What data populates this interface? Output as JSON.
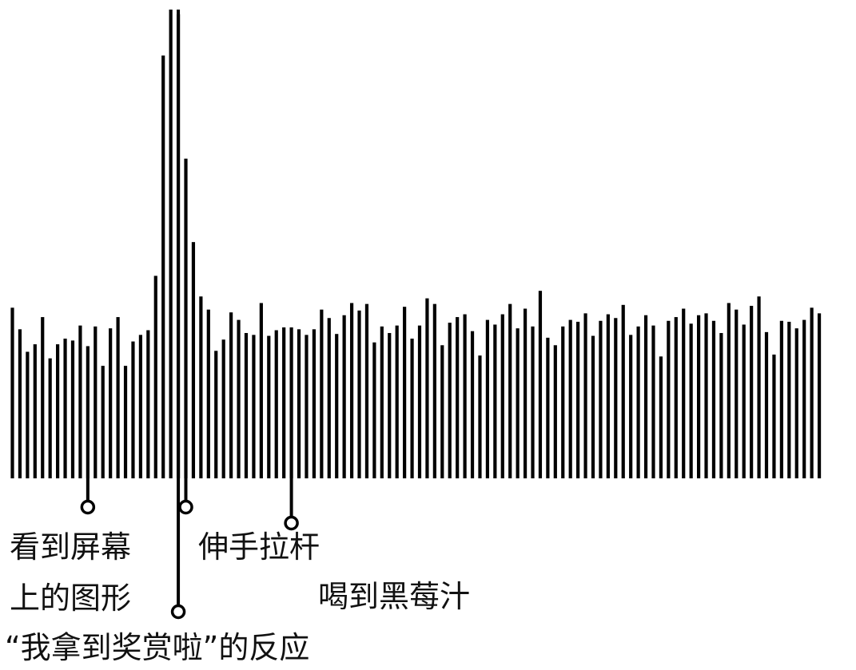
{
  "chart_data": {
    "type": "bar",
    "title": "",
    "xlabel": "",
    "ylabel": "",
    "grid": false,
    "bar_color": "#000000",
    "values": [
      182,
      159,
      135,
      143,
      172,
      128,
      143,
      149,
      147,
      163,
      141,
      162,
      120,
      160,
      172,
      120,
      146,
      153,
      158,
      216,
      451,
      500,
      495,
      341,
      252,
      194,
      180,
      136,
      148,
      177,
      169,
      155,
      153,
      187,
      152,
      158,
      161,
      161,
      159,
      153,
      159,
      180,
      171,
      154,
      174,
      187,
      179,
      186,
      145,
      162,
      155,
      163,
      183,
      149,
      163,
      192,
      186,
      142,
      166,
      172,
      175,
      157,
      131,
      169,
      164,
      175,
      186,
      160,
      181,
      162,
      200,
      150,
      142,
      162,
      169,
      167,
      176,
      152,
      168,
      175,
      171,
      185,
      153,
      162,
      174,
      163,
      130,
      168,
      172,
      181,
      165,
      174,
      176,
      168,
      155,
      187,
      180,
      164,
      184,
      194,
      156,
      132,
      168,
      167,
      160,
      169,
      182,
      176
    ],
    "events": [
      {
        "id": "see-shapes",
        "label_lines": [
          "看到屏幕",
          "上的图形"
        ],
        "bar_index": 10
      },
      {
        "id": "reward-reaction",
        "label_lines": [
          "“我拿到奖赏啦”的反应"
        ],
        "bar_index": 22
      },
      {
        "id": "pull-lever",
        "label_lines": [
          "伸手拉杆"
        ],
        "bar_index": 23
      },
      {
        "id": "drink-juice",
        "label_lines": [
          "喝到黑莓汁"
        ],
        "bar_index": 37
      }
    ]
  }
}
